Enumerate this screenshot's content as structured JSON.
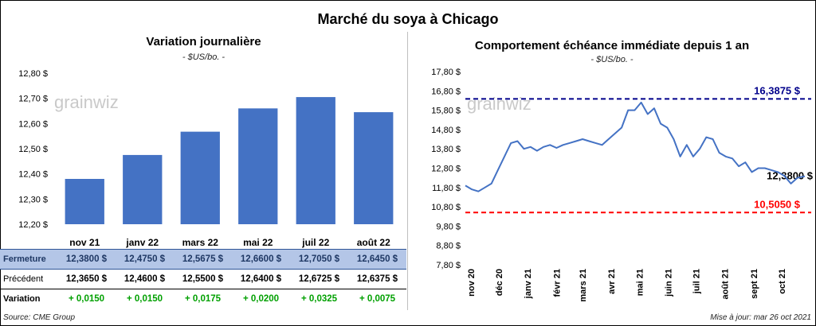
{
  "title": "Marché du soya à Chicago",
  "left_panel": {
    "title": "Variation  journalière",
    "unit": "- $US/bo. -",
    "watermark": "grainwiz"
  },
  "right_panel": {
    "title": "Comportement  échéance immédiate depuis 1 an",
    "unit": "- $US/bo. -",
    "watermark": "grainwiz"
  },
  "chart_data": [
    {
      "type": "bar",
      "title": "Variation  journalière",
      "categories": [
        "nov 21",
        "janv 22",
        "mars 22",
        "mai 22",
        "juil 22",
        "août 22"
      ],
      "values": [
        12.38,
        12.475,
        12.5675,
        12.66,
        12.705,
        12.645
      ],
      "ylim": [
        12.2,
        12.8
      ],
      "yticks": [
        "12,20 $",
        "12,30 $",
        "12,40 $",
        "12,50 $",
        "12,60 $",
        "12,70 $",
        "12,80 $"
      ],
      "color": "#4472c4",
      "grid": false
    },
    {
      "type": "line",
      "title": "Comportement  échéance immédiate depuis 1 an",
      "ylim": [
        7.8,
        17.8
      ],
      "yticks": [
        "7,80 $",
        "8,80 $",
        "9,80 $",
        "10,80 $",
        "11,80 $",
        "12,80 $",
        "13,80 $",
        "14,80 $",
        "15,80 $",
        "16,80 $",
        "17,80 $"
      ],
      "xticks": [
        "nov 20",
        "déc 20",
        "janv 21",
        "févr 21",
        "mars 21",
        "avr 21",
        "mai 21",
        "juin 21",
        "juil 21",
        "août 21",
        "sept 21",
        "oct 21"
      ],
      "series": [
        {
          "color": "#4472c4",
          "x": [
            "2020-10-26",
            "2020-11-02",
            "2020-11-09",
            "2020-11-16",
            "2020-11-23",
            "2020-11-30",
            "2020-12-07",
            "2020-12-14",
            "2020-12-21",
            "2020-12-28",
            "2021-01-04",
            "2021-01-11",
            "2021-01-18",
            "2021-01-25",
            "2021-02-01",
            "2021-02-08",
            "2021-02-15",
            "2021-02-22",
            "2021-03-01",
            "2021-03-08",
            "2021-03-15",
            "2021-03-22",
            "2021-03-29",
            "2021-04-05",
            "2021-04-12",
            "2021-04-19",
            "2021-04-26",
            "2021-05-03",
            "2021-05-10",
            "2021-05-17",
            "2021-05-24",
            "2021-05-31",
            "2021-06-07",
            "2021-06-14",
            "2021-06-21",
            "2021-06-28",
            "2021-07-05",
            "2021-07-12",
            "2021-07-19",
            "2021-07-26",
            "2021-08-02",
            "2021-08-09",
            "2021-08-16",
            "2021-08-23",
            "2021-08-30",
            "2021-09-06",
            "2021-09-13",
            "2021-09-20",
            "2021-09-27",
            "2021-10-04",
            "2021-10-11",
            "2021-10-18",
            "2021-10-26"
          ],
          "y": [
            11.9,
            11.7,
            11.6,
            11.8,
            12.0,
            12.7,
            13.4,
            14.1,
            14.2,
            13.8,
            13.9,
            13.7,
            13.9,
            14.0,
            13.85,
            14.0,
            14.1,
            14.2,
            14.3,
            14.2,
            14.1,
            14.0,
            14.3,
            14.6,
            14.9,
            15.8,
            15.8,
            16.2,
            15.6,
            15.9,
            15.1,
            14.9,
            14.3,
            13.4,
            14.0,
            13.4,
            13.8,
            14.4,
            14.3,
            13.6,
            13.4,
            13.3,
            12.9,
            13.1,
            12.6,
            12.8,
            12.8,
            12.7,
            12.6,
            12.4,
            12.0,
            12.3,
            12.38
          ]
        }
      ],
      "annotations": [
        {
          "value": 16.3875,
          "label": "16,3875 $",
          "color": "#00008b",
          "style": "dashed"
        },
        {
          "value": 10.505,
          "label": "10,5050 $",
          "color": "#ff0000",
          "style": "dashed"
        },
        {
          "value": 12.38,
          "label": "12,3800 $",
          "color": "#000000",
          "style": "label"
        }
      ],
      "grid": false
    }
  ],
  "table": {
    "rows": [
      {
        "label": "Fermeture",
        "values": [
          "12,3800  $",
          "12,4750  $",
          "12,5675  $",
          "12,6600  $",
          "12,7050  $",
          "12,6450  $"
        ]
      },
      {
        "label": "Précédent",
        "values": [
          "12,3650  $",
          "12,4600  $",
          "12,5500  $",
          "12,6400  $",
          "12,6725  $",
          "12,6375  $"
        ]
      },
      {
        "label": "Variation",
        "values": [
          "+ 0,0150",
          "+ 0,0150",
          "+ 0,0175",
          "+ 0,0200",
          "+ 0,0325",
          "+ 0,0075"
        ]
      }
    ]
  },
  "footer": {
    "source": "Source: CME Group",
    "updated": "Mise à jour: mar 26 oct 2021"
  }
}
